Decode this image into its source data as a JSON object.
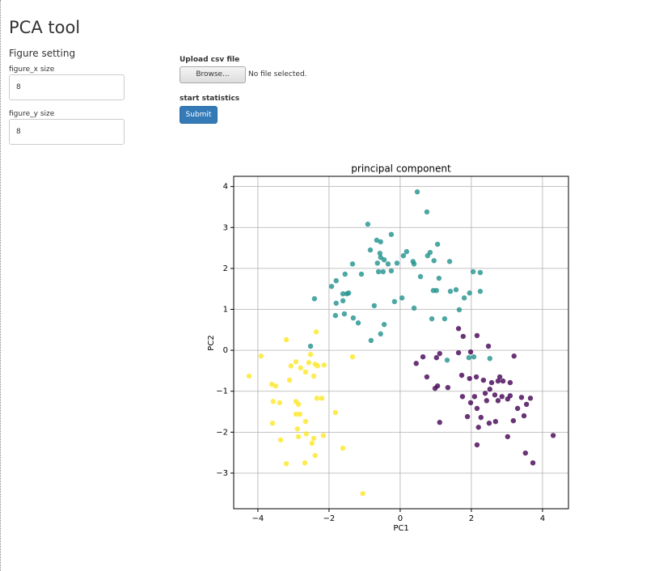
{
  "header": {
    "title": "PCA tool"
  },
  "settings": {
    "title": "Figure setting",
    "fields": [
      {
        "label": "figure_x size",
        "value": "8"
      },
      {
        "label": "figure_y size",
        "value": "8"
      }
    ]
  },
  "upload": {
    "label": "Upload csv file",
    "button": "Browse...",
    "status": "No file selected."
  },
  "statistics": {
    "label": "start statistics",
    "button": "Submit"
  },
  "chart_data": {
    "type": "scatter",
    "title": "principal component",
    "x_label": "PC1",
    "y_label": "PC2",
    "grid": true,
    "xlim": [
      -4.68,
      4.73
    ],
    "ylim": [
      -3.87,
      4.25
    ],
    "xticks": [
      {
        "value": -4,
        "label": "−4"
      },
      {
        "value": -2,
        "label": "−2"
      },
      0,
      2,
      4
    ],
    "yticks": [
      {
        "value": -3,
        "label": "−3"
      },
      {
        "value": -2,
        "label": "−2"
      },
      {
        "value": -1,
        "label": "−1"
      },
      0,
      1,
      2,
      3,
      4
    ],
    "series": [
      {
        "color": "#440154",
        "x": [
          1.64,
          1.77,
          2.16,
          2.48,
          1.64,
          1.98,
          1.11,
          0.64,
          3.2,
          0.45,
          1.02,
          0.75,
          1.05,
          0.98,
          1.73,
          1.95,
          2.14,
          2.34,
          2.57,
          2.75,
          2.8,
          2.89,
          3.09,
          2.52,
          2.09,
          2.39,
          2.66,
          2.86,
          3.09,
          3.41,
          3.66,
          1.75,
          2.43,
          2.75,
          3.02,
          3.55,
          1.98,
          2.16,
          3.3,
          1.89,
          2.27,
          2.5,
          2.68,
          3.18,
          3.48,
          1.11,
          2.2,
          3.02,
          2.16,
          4.3,
          3.52,
          3.73,
          1.34
        ],
        "values": [
          0.53,
          0.34,
          0.36,
          0.1,
          -0.06,
          -0.04,
          -0.08,
          -0.16,
          -0.14,
          -0.32,
          -0.18,
          -0.65,
          -0.87,
          -0.93,
          -0.61,
          -0.69,
          -0.65,
          -0.73,
          -0.79,
          -0.75,
          -0.65,
          -0.75,
          -0.79,
          -0.95,
          -1.13,
          -1.05,
          -1.09,
          -1.13,
          -1.11,
          -1.15,
          -1.17,
          -1.13,
          -1.23,
          -1.23,
          -1.19,
          -1.32,
          -1.28,
          -1.42,
          -1.42,
          -1.62,
          -1.64,
          -1.78,
          -1.74,
          -1.72,
          -1.6,
          -1.76,
          -1.88,
          -2.11,
          -2.31,
          -2.08,
          -2.51,
          -2.75,
          -0.91
        ]
      },
      {
        "color": "#21918c",
        "x": [
          0.48,
          0.75,
          -0.91,
          -0.66,
          -0.55,
          -0.25,
          -0.84,
          -0.57,
          -0.55,
          -0.45,
          -0.64,
          -1.34,
          -0.34,
          -0.09,
          0.09,
          0.18,
          0.39,
          0.36,
          0.77,
          0.84,
          1.05,
          0.95,
          1.39,
          -0.61,
          -0.48,
          -0.25,
          -1.09,
          -1.55,
          -1.93,
          -1.8,
          -1.61,
          -1.5,
          -1.45,
          0.93,
          1.02,
          0.57,
          1.09,
          1.41,
          1.57,
          1.95,
          2.05,
          2.25,
          2.25,
          1.8,
          1.66,
          -2.41,
          -1.8,
          -1.61,
          -0.73,
          -0.16,
          0.05,
          0.39,
          -1.57,
          -1.82,
          -1.32,
          -1.18,
          -0.45,
          0.89,
          1.25,
          -0.55,
          -0.82,
          -2.52,
          2.52,
          1.32,
          1.93,
          2.07
        ],
        "values": [
          3.87,
          3.38,
          3.08,
          2.69,
          2.65,
          2.83,
          2.45,
          2.37,
          2.27,
          2.21,
          2.13,
          2.11,
          2.11,
          2.13,
          2.31,
          2.41,
          2.11,
          2.17,
          2.31,
          2.39,
          2.59,
          2.19,
          2.17,
          1.92,
          1.92,
          1.94,
          1.86,
          1.86,
          1.56,
          1.7,
          1.38,
          1.38,
          1.4,
          1.46,
          1.46,
          1.8,
          1.76,
          1.44,
          1.48,
          1.4,
          1.92,
          1.9,
          1.44,
          1.28,
          0.99,
          1.26,
          1.15,
          1.21,
          1.09,
          1.19,
          1.28,
          1.03,
          0.89,
          0.85,
          0.79,
          0.67,
          0.63,
          0.77,
          0.77,
          0.4,
          0.24,
          0.1,
          -0.2,
          -0.24,
          -0.18,
          -0.16
        ]
      },
      {
        "color": "#fde725",
        "x": [
          -4.25,
          -3.91,
          -3.2,
          -2.36,
          -2.52,
          -3.07,
          -2.93,
          -2.8,
          -2.66,
          -2.57,
          -2.39,
          -2.43,
          -2.14,
          -2.32,
          -3.61,
          -3.5,
          -3.11,
          -1.34,
          -2.34,
          -2.2,
          -1.82,
          -3.57,
          -3.39,
          -2.93,
          -2.93,
          -2.82,
          -3.59,
          -2.66,
          -2.89,
          -2.86,
          -2.64,
          -2.43,
          -2.16,
          -3.36,
          -2.48,
          -2.39,
          -2.68,
          -3.2,
          -1.61,
          -1.05,
          -2.86
        ],
        "values": [
          -0.63,
          -0.14,
          0.26,
          0.45,
          -0.1,
          -0.38,
          -0.28,
          -0.43,
          -0.53,
          -0.3,
          -0.34,
          -0.63,
          -0.36,
          -0.38,
          -0.83,
          -0.87,
          -0.73,
          -0.16,
          -1.17,
          -1.17,
          -1.52,
          -1.25,
          -1.28,
          -1.25,
          -1.56,
          -1.56,
          -1.78,
          -1.74,
          -1.92,
          -2.11,
          -2.04,
          -2.15,
          -2.08,
          -2.19,
          -2.27,
          -2.57,
          -2.75,
          -2.77,
          -2.39,
          -3.5,
          -1.32
        ]
      }
    ]
  }
}
